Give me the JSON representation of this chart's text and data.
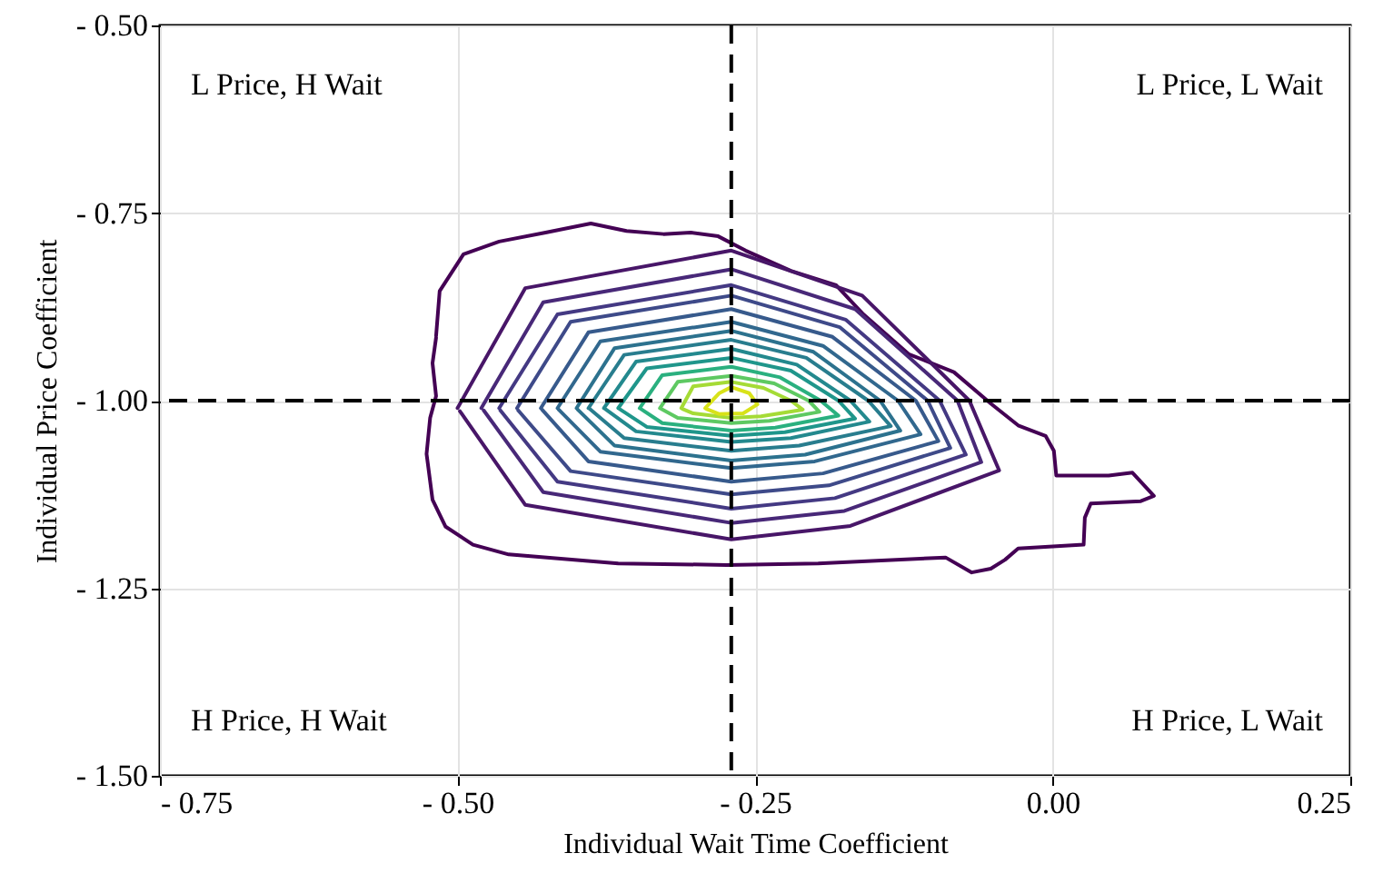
{
  "chart_data": {
    "type": "line",
    "xlabel": "Individual Wait Time Coefficient",
    "ylabel": "Individual Price Coefficient",
    "annotations": [
      "L Price, H Wait",
      "L Price, L Wait",
      "H Price, H Wait",
      "H Price, L Wait"
    ],
    "xlim": [
      -0.75,
      0.25
    ],
    "ylim": [
      -1.5,
      -0.5
    ],
    "xticks": [
      {
        "value": -0.75,
        "label": "- 0.75"
      },
      {
        "value": -0.5,
        "label": "- 0.50"
      },
      {
        "value": -0.25,
        "label": "- 0.25"
      },
      {
        "value": 0,
        "label": "0.00"
      },
      {
        "value": 0.25,
        "label": "0.25"
      }
    ],
    "yticks": [
      {
        "value": -0.5,
        "label": "- 0.50"
      },
      {
        "value": -0.75,
        "label": "- 0.75"
      },
      {
        "value": -1,
        "label": "- 1.00"
      },
      {
        "value": -1.25,
        "label": "- 1.25"
      },
      {
        "value": -1.5,
        "label": "- 1.50"
      }
    ],
    "grid": true,
    "marker": "none",
    "ref_lines": [
      {
        "axis": "x",
        "value": -0.27,
        "color": "#000000",
        "line_style": "dashed"
      },
      {
        "axis": "y",
        "value": -1.0,
        "color": "#000000",
        "line_style": "dashed"
      }
    ],
    "series": [
      {
        "color": "#440154",
        "x": [
          -0.518,
          -0.515,
          -0.495,
          -0.465,
          -0.426,
          -0.388,
          -0.358,
          -0.327,
          -0.304,
          -0.281,
          -0.258,
          -0.22,
          -0.182,
          -0.159,
          -0.121,
          -0.083,
          -0.052,
          -0.029,
          -0.006,
          0.001,
          0.003,
          0.047,
          0.067,
          0.085,
          0.074,
          0.032,
          0.027,
          0.026,
          -0.029,
          -0.04,
          -0.052,
          -0.068,
          -0.09,
          -0.197,
          -0.274,
          -0.365,
          -0.457,
          -0.487,
          -0.51,
          -0.521,
          -0.526,
          -0.523,
          -0.518,
          -0.521,
          -0.518
        ],
        "values": [
          -0.914,
          -0.854,
          -0.805,
          -0.788,
          -0.776,
          -0.764,
          -0.774,
          -0.778,
          -0.776,
          -0.781,
          -0.8,
          -0.827,
          -0.846,
          -0.885,
          -0.938,
          -0.962,
          -1.004,
          -1.033,
          -1.047,
          -1.067,
          -1.1,
          -1.1,
          -1.096,
          -1.127,
          -1.134,
          -1.137,
          -1.156,
          -1.192,
          -1.197,
          -1.212,
          -1.224,
          -1.229,
          -1.209,
          -1.217,
          -1.219,
          -1.217,
          -1.205,
          -1.192,
          -1.168,
          -1.132,
          -1.071,
          -1.023,
          -0.994,
          -0.95,
          -0.916
        ]
      },
      {
        "color": "#481668",
        "x": [
          -0.5,
          -0.443,
          -0.27,
          -0.16,
          -0.07,
          -0.045,
          -0.17,
          -0.27,
          -0.443,
          -0.498
        ],
        "values": [
          -1.01,
          -0.85,
          -0.8,
          -0.86,
          -1.0,
          -1.093,
          -1.167,
          -1.185,
          -1.139,
          -1.014
        ]
      },
      {
        "color": "#482878",
        "x": [
          -0.48,
          -0.428,
          -0.27,
          -0.166,
          -0.08,
          -0.06,
          -0.175,
          -0.27,
          -0.428,
          -0.478
        ],
        "values": [
          -1.01,
          -0.869,
          -0.825,
          -0.878,
          -1.0,
          -1.082,
          -1.147,
          -1.163,
          -1.122,
          -1.013
        ]
      },
      {
        "color": "#443983",
        "x": [
          -0.465,
          -0.416,
          -0.27,
          -0.174,
          -0.095,
          -0.073,
          -0.183,
          -0.27,
          -0.416,
          -0.464
        ],
        "values": [
          -1.01,
          -0.885,
          -0.846,
          -0.892,
          -1.0,
          -1.072,
          -1.13,
          -1.144,
          -1.108,
          -1.013
        ]
      },
      {
        "color": "#3e4a89",
        "x": [
          -0.45,
          -0.405,
          -0.27,
          -0.179,
          -0.105,
          -0.086,
          -0.188,
          -0.27,
          -0.405,
          -0.449
        ],
        "values": [
          -1.01,
          -0.895,
          -0.86,
          -0.902,
          -1.0,
          -1.063,
          -1.113,
          -1.125,
          -1.094,
          -1.013
        ]
      },
      {
        "color": "#375a8c",
        "x": [
          -0.43,
          -0.39,
          -0.27,
          -0.185,
          -0.115,
          -0.096,
          -0.193,
          -0.27,
          -0.39,
          -0.429
        ],
        "values": [
          -1.01,
          -0.909,
          -0.878,
          -0.915,
          -1.0,
          -1.054,
          -1.097,
          -1.108,
          -1.081,
          -1.012
        ]
      },
      {
        "color": "#31688e",
        "x": [
          -0.416,
          -0.38,
          -0.27,
          -0.193,
          -0.13,
          -0.111,
          -0.2,
          -0.27,
          -0.38,
          -0.415
        ],
        "values": [
          -1.01,
          -0.921,
          -0.895,
          -0.927,
          -1.0,
          -1.045,
          -1.081,
          -1.09,
          -1.068,
          -1.012
        ]
      },
      {
        "color": "#2c728e",
        "x": [
          -0.4,
          -0.368,
          -0.27,
          -0.201,
          -0.145,
          -0.128,
          -0.208,
          -0.27,
          -0.368,
          -0.399
        ],
        "values": [
          -1.01,
          -0.93,
          -0.907,
          -0.935,
          -1.0,
          -1.04,
          -1.072,
          -1.08,
          -1.06,
          -1.012
        ]
      },
      {
        "color": "#287d8e",
        "x": [
          -0.39,
          -0.36,
          -0.27,
          -0.207,
          -0.155,
          -0.136,
          -0.213,
          -0.27,
          -0.36,
          -0.389
        ],
        "values": [
          -1.01,
          -0.939,
          -0.919,
          -0.943,
          -1.0,
          -1.034,
          -1.06,
          -1.067,
          -1.05,
          -1.011
        ]
      },
      {
        "color": "#23898e",
        "x": [
          -0.377,
          -0.35,
          -0.27,
          -0.215,
          -0.17,
          -0.154,
          -0.22,
          -0.27,
          -0.35,
          -0.376
        ],
        "values": [
          -1.01,
          -0.948,
          -0.931,
          -0.952,
          -1.0,
          -1.028,
          -1.05,
          -1.055,
          -1.041,
          -1.011
        ]
      },
      {
        "color": "#1f968b",
        "x": [
          -0.365,
          -0.341,
          -0.27,
          -0.22,
          -0.18,
          -0.166,
          -0.225,
          -0.27,
          -0.341,
          -0.364
        ],
        "values": [
          -1.01,
          -0.957,
          -0.943,
          -0.96,
          -1.0,
          -1.024,
          -1.042,
          -1.047,
          -1.035,
          -1.011
        ]
      },
      {
        "color": "#2ab07f",
        "x": [
          -0.347,
          -0.328,
          -0.27,
          -0.229,
          -0.195,
          -0.18,
          -0.233,
          -0.27,
          -0.328,
          -0.346
        ],
        "values": [
          -1.01,
          -0.966,
          -0.955,
          -0.969,
          -1.0,
          -1.02,
          -1.036,
          -1.04,
          -1.03,
          -1.011
        ]
      },
      {
        "color": "#5ec962",
        "x": [
          -0.33,
          -0.315,
          -0.27,
          -0.234,
          -0.205,
          -0.196,
          -0.238,
          -0.27,
          -0.315,
          -0.329
        ],
        "values": [
          -1.01,
          -0.975,
          -0.967,
          -0.977,
          -1.0,
          -1.015,
          -1.027,
          -1.03,
          -1.023,
          -1.011
        ]
      },
      {
        "color": "#a5db36",
        "x": [
          -0.312,
          -0.302,
          -0.27,
          -0.243,
          -0.22,
          -0.21,
          -0.245,
          -0.27,
          -0.302,
          -0.311
        ],
        "values": [
          -1.01,
          -0.981,
          -0.975,
          -0.983,
          -1.0,
          -1.012,
          -1.021,
          -1.023,
          -1.017,
          -1.011
        ]
      },
      {
        "color": "#d8e219",
        "x": [
          -0.292,
          -0.28,
          -0.27,
          -0.255,
          -0.248,
          -0.26,
          -0.28,
          -0.291
        ],
        "values": [
          -1.01,
          -0.99,
          -0.982,
          -0.99,
          -1.005,
          -1.017,
          -1.018,
          -1.011
        ]
      }
    ]
  }
}
